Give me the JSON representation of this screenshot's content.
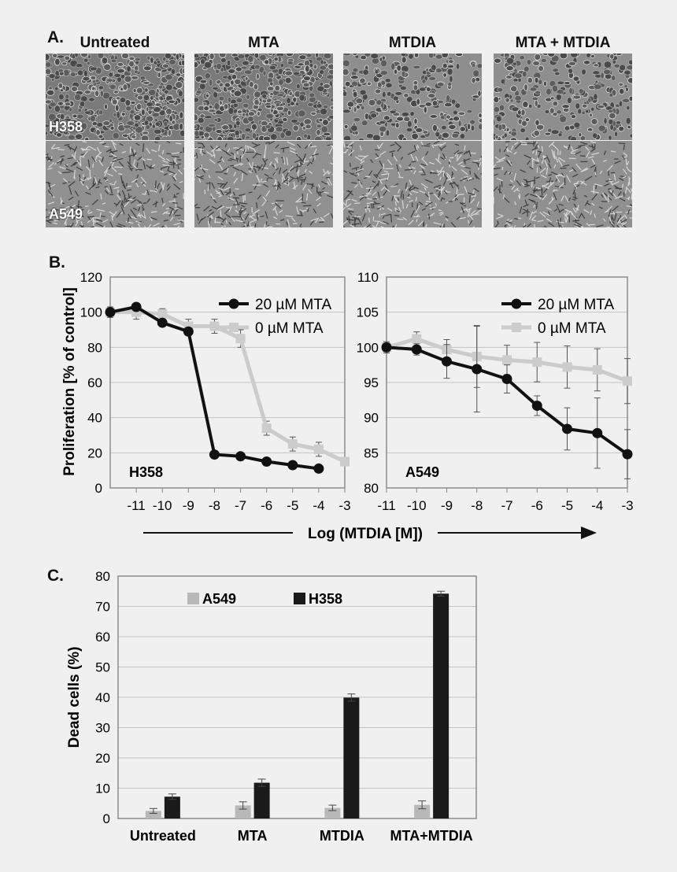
{
  "panel_a": {
    "letter": "A.",
    "columns": [
      "Untreated",
      "MTA",
      "MTDIA",
      "MTA + MTDIA"
    ],
    "rows": [
      "H358",
      "A549"
    ]
  },
  "panel_b": {
    "letter": "B."
  },
  "panel_c": {
    "letter": "C."
  },
  "chart_data": [
    {
      "type": "line",
      "panel": "B-left",
      "title": "H358",
      "ylabel": "Proliferation [% of control]",
      "xlabel": "Log (MTDIA [M])",
      "xlim": [
        -12,
        -3
      ],
      "ylim": [
        0,
        120
      ],
      "x_ticks": [
        -11,
        -10,
        -9,
        -8,
        -7,
        -6,
        -5,
        -4,
        -3
      ],
      "y_ticks": [
        0,
        20,
        40,
        60,
        80,
        100,
        120
      ],
      "grid": true,
      "legend": "top-right",
      "series": [
        {
          "name": "20 µM MTA",
          "color": "#111111",
          "x": [
            -12,
            -11,
            -10,
            -9,
            -8,
            -7,
            -6,
            -5,
            -4
          ],
          "y": [
            100,
            103,
            94,
            89,
            19,
            18,
            15,
            13,
            11
          ],
          "err": [
            0,
            1.5,
            1.5,
            2,
            1,
            1,
            1,
            1,
            1
          ]
        },
        {
          "name": "0 µM MTA",
          "color": "#cccccc",
          "x": [
            -12,
            -11,
            -10,
            -9,
            -8,
            -7,
            -6,
            -5,
            -4,
            -3
          ],
          "y": [
            100,
            100,
            99,
            92,
            92,
            85,
            34,
            25,
            22,
            15
          ],
          "err": [
            3,
            4,
            3,
            4,
            4,
            5,
            4,
            4,
            4,
            2
          ]
        }
      ]
    },
    {
      "type": "line",
      "panel": "B-right",
      "title": "A549",
      "xlim": [
        -11,
        -3
      ],
      "ylim": [
        80,
        110
      ],
      "x_ticks": [
        -11,
        -10,
        -9,
        -8,
        -7,
        -6,
        -5,
        -4,
        -3
      ],
      "y_ticks": [
        80,
        85,
        90,
        95,
        100,
        105,
        110
      ],
      "grid": true,
      "legend": "top-right",
      "series": [
        {
          "name": "20 µM MTA",
          "color": "#111111",
          "x": [
            -11,
            -10,
            -9,
            -8,
            -7,
            -6,
            -5,
            -4,
            -3
          ],
          "y": [
            100,
            99.7,
            98,
            96.9,
            95.5,
            91.7,
            88.4,
            87.8,
            84.8
          ],
          "err": [
            0.6,
            0.8,
            2.4,
            6.1,
            2,
            1.4,
            3,
            5,
            3.5
          ]
        },
        {
          "name": "0 µM MTA",
          "color": "#cccccc",
          "x": [
            -11,
            -10,
            -9,
            -8,
            -7,
            -6,
            -5,
            -4,
            -3
          ],
          "y": [
            100,
            101.2,
            99.7,
            98.7,
            98.2,
            97.9,
            97.2,
            96.8,
            95.2
          ],
          "err": [
            0.8,
            1,
            1.4,
            4.4,
            2.1,
            2.8,
            3,
            3,
            3.2
          ]
        }
      ]
    },
    {
      "type": "bar",
      "panel": "C",
      "ylabel": "Dead cells (%)",
      "categories": [
        "Untreated",
        "MTA",
        "MTDIA",
        "MTA+MTDIA"
      ],
      "ylim": [
        0,
        80
      ],
      "y_ticks": [
        0,
        10,
        20,
        30,
        40,
        50,
        60,
        70,
        80
      ],
      "grid": true,
      "legend": "top-left",
      "series": [
        {
          "name": "A549",
          "color": "#b8b8b8",
          "values": [
            2.5,
            4.3,
            3.5,
            4.5
          ],
          "err": [
            0.8,
            1.2,
            0.9,
            1.3
          ]
        },
        {
          "name": "H358",
          "color": "#1a1a1a",
          "values": [
            7.2,
            11.8,
            39.9,
            74.2
          ],
          "err": [
            0.9,
            1.2,
            1.2,
            0.8
          ]
        }
      ]
    }
  ]
}
